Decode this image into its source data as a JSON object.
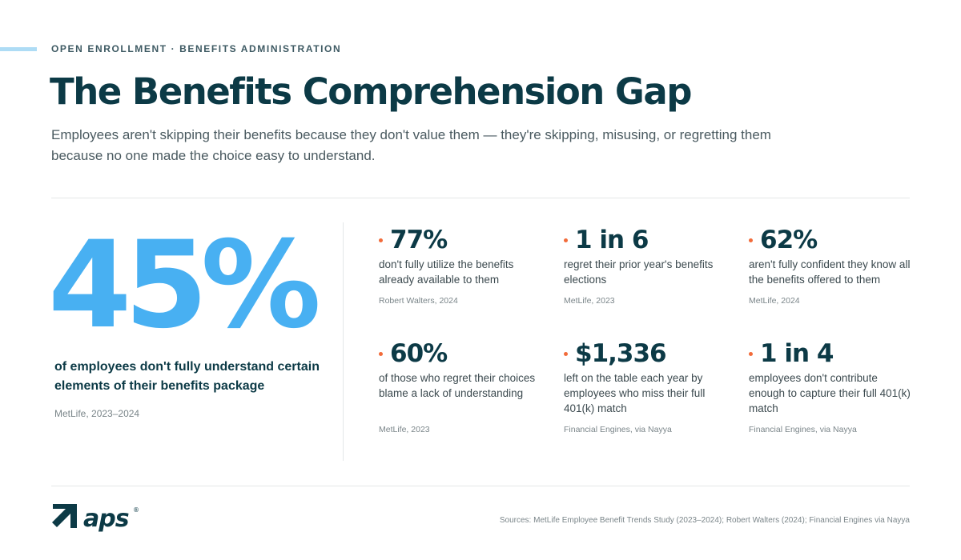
{
  "eyebrow": "OPEN ENROLLMENT · BENEFITS ADMINISTRATION",
  "title": "The Benefits Comprehension Gap",
  "subtitle": "Employees aren't skipping their benefits because they don't value them — they're skipping, misusing, or regretting them because no one made the choice easy to understand.",
  "hero": {
    "value": "45%",
    "description": "of employees don't fully understand certain elements of their benefits package",
    "source": "MetLife, 2023–2024"
  },
  "stats": [
    {
      "value": "77%",
      "description": "don't fully utilize the benefits already available to them",
      "source": "Robert Walters, 2024"
    },
    {
      "value": "1 in 6",
      "description": "regret their prior year's benefits elections",
      "source": "MetLife, 2023"
    },
    {
      "value": "62%",
      "description": "aren't fully confident they know all the benefits offered to them",
      "source": "MetLife, 2024"
    },
    {
      "value": "60%",
      "description": "of those who regret their choices blame a lack of understanding",
      "source": "MetLife, 2023"
    },
    {
      "value": "$1,336",
      "description": "left on the table each year by employees who miss their full 401(k) match",
      "source": "Financial Engines, via Nayya"
    },
    {
      "value": "1 in 4",
      "description": "employees don't contribute enough to capture their full 401(k) match",
      "source": "Financial Engines, via Nayya"
    }
  ],
  "footer": {
    "logo_text": "aps",
    "logo_mark": "®",
    "sources": "Sources: MetLife Employee Benefit Trends Study (2023–2024); Robert Walters (2024); Financial Engines via Nayya"
  },
  "colors": {
    "navy": "#0c3a46",
    "hero_blue": "#48b0f2",
    "bullet_orange": "#f26b3a",
    "accent_light_blue": "#aedcf5"
  }
}
